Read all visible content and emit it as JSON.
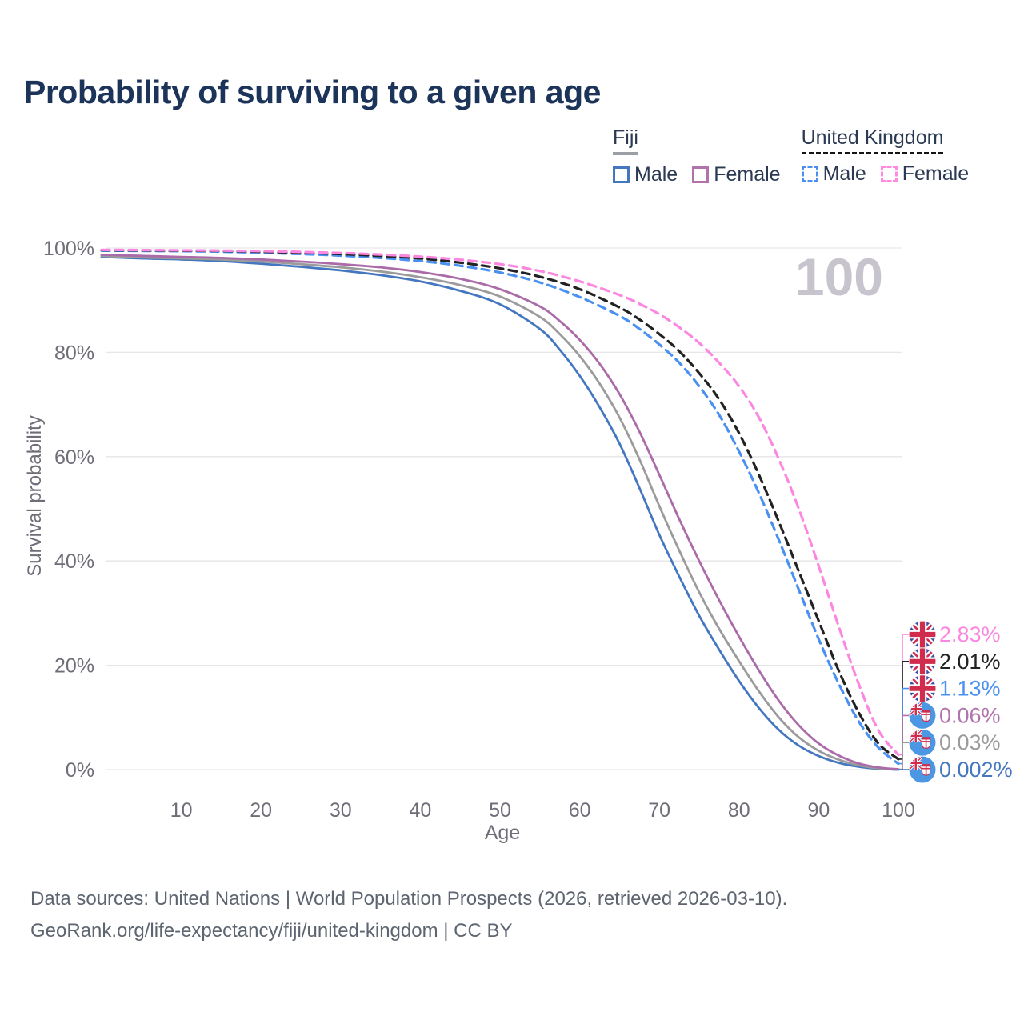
{
  "title": "Probability of surviving to a given age",
  "watermark_age": "100",
  "legend": {
    "groups": [
      {
        "country": "Fiji",
        "underline_style": "solid",
        "underline_color": "#9aa0a6",
        "items": [
          {
            "label": "Male",
            "color": "#4577c0",
            "dash": false
          },
          {
            "label": "Female",
            "color": "#b273ac",
            "dash": false
          }
        ]
      },
      {
        "country": "United Kingdom",
        "underline_style": "dashed",
        "underline_color": "#141414",
        "items": [
          {
            "label": "Male",
            "color": "#4a90f0",
            "dash": true
          },
          {
            "label": "Female",
            "color": "#ff8ae0",
            "dash": true
          }
        ]
      }
    ]
  },
  "chart_data": {
    "type": "line",
    "title": "Probability of surviving to a given age",
    "xlabel": "Age",
    "ylabel": "Survival probability",
    "xlim": [
      0,
      100
    ],
    "ylim": [
      0,
      100
    ],
    "grid": "horizontal",
    "legend_position": "top-right",
    "xticks": [
      10,
      20,
      30,
      40,
      50,
      60,
      70,
      80,
      90,
      100
    ],
    "yticks": [
      {
        "value": 0,
        "label": "0%"
      },
      {
        "value": 20,
        "label": "20%"
      },
      {
        "value": 40,
        "label": "40%"
      },
      {
        "value": 60,
        "label": "60%"
      },
      {
        "value": 80,
        "label": "80%"
      },
      {
        "value": 100,
        "label": "100%"
      }
    ],
    "series": [
      {
        "id": "fiji-male",
        "name": "Fiji Male",
        "country": "Fiji",
        "sex": "Male",
        "color": "#4577c0",
        "dash": false,
        "flag_icon": "fiji-flag-icon",
        "end_label": "0.002%",
        "end_label_color": "#4577c0",
        "points": [
          [
            0,
            98.3
          ],
          [
            5,
            98.0
          ],
          [
            10,
            97.8
          ],
          [
            15,
            97.5
          ],
          [
            20,
            97.0
          ],
          [
            25,
            96.4
          ],
          [
            30,
            95.7
          ],
          [
            35,
            94.8
          ],
          [
            40,
            93.6
          ],
          [
            45,
            91.8
          ],
          [
            50,
            89.2
          ],
          [
            55,
            84.5
          ],
          [
            57.5,
            80.5
          ],
          [
            60,
            75.5
          ],
          [
            62.5,
            69.5
          ],
          [
            65,
            62.5
          ],
          [
            67.5,
            54
          ],
          [
            70,
            45
          ],
          [
            72.5,
            37
          ],
          [
            75,
            29.5
          ],
          [
            77.5,
            23
          ],
          [
            80,
            17
          ],
          [
            82.5,
            11.8
          ],
          [
            85,
            7.6
          ],
          [
            87.5,
            4.6
          ],
          [
            90,
            2.6
          ],
          [
            92.5,
            1.3
          ],
          [
            95,
            0.55
          ],
          [
            97.5,
            0.15
          ],
          [
            100,
            0.002
          ]
        ]
      },
      {
        "id": "fiji-total",
        "name": "Fiji Both sexes",
        "country": "Fiji",
        "sex": "Both",
        "color": "#9b9b9b",
        "dash": false,
        "flag_icon": "fiji-flag-icon",
        "end_label": "0.03%",
        "end_label_color": "#9b9b9b",
        "points": [
          [
            0,
            98.5
          ],
          [
            5,
            98.2
          ],
          [
            10,
            98.0
          ],
          [
            15,
            97.8
          ],
          [
            20,
            97.4
          ],
          [
            25,
            96.9
          ],
          [
            30,
            96.3
          ],
          [
            35,
            95.5
          ],
          [
            40,
            94.4
          ],
          [
            45,
            92.9
          ],
          [
            50,
            90.7
          ],
          [
            55,
            86.8
          ],
          [
            57.5,
            83.5
          ],
          [
            60,
            79.3
          ],
          [
            62.5,
            74
          ],
          [
            65,
            67.5
          ],
          [
            67.5,
            59.5
          ],
          [
            70,
            50.5
          ],
          [
            72.5,
            42
          ],
          [
            75,
            34
          ],
          [
            77.5,
            27
          ],
          [
            80,
            20.8
          ],
          [
            82.5,
            15
          ],
          [
            85,
            10
          ],
          [
            87.5,
            6.2
          ],
          [
            90,
            3.6
          ],
          [
            92.5,
            1.9
          ],
          [
            95,
            0.85
          ],
          [
            97.5,
            0.25
          ],
          [
            100,
            0.03
          ]
        ]
      },
      {
        "id": "fiji-female",
        "name": "Fiji Female",
        "country": "Fiji",
        "sex": "Female",
        "color": "#ab6aa8",
        "dash": false,
        "flag_icon": "fiji-flag-icon",
        "end_label": "0.06%",
        "end_label_color": "#b273ac",
        "points": [
          [
            0,
            98.7
          ],
          [
            5,
            98.5
          ],
          [
            10,
            98.3
          ],
          [
            15,
            98.1
          ],
          [
            20,
            97.8
          ],
          [
            25,
            97.4
          ],
          [
            30,
            96.9
          ],
          [
            35,
            96.3
          ],
          [
            40,
            95.4
          ],
          [
            45,
            94.1
          ],
          [
            50,
            92.1
          ],
          [
            55,
            88.8
          ],
          [
            57.5,
            86
          ],
          [
            60,
            82.4
          ],
          [
            62.5,
            77.8
          ],
          [
            65,
            72
          ],
          [
            67.5,
            64.8
          ],
          [
            70,
            56.5
          ],
          [
            72.5,
            48
          ],
          [
            75,
            40
          ],
          [
            77.5,
            32.5
          ],
          [
            80,
            25.5
          ],
          [
            82.5,
            19
          ],
          [
            85,
            13.2
          ],
          [
            87.5,
            8.5
          ],
          [
            90,
            5
          ],
          [
            92.5,
            2.7
          ],
          [
            95,
            1.2
          ],
          [
            97.5,
            0.4
          ],
          [
            100,
            0.06
          ]
        ]
      },
      {
        "id": "uk-male",
        "name": "United Kingdom Male",
        "country": "United Kingdom",
        "sex": "Male",
        "color": "#4a90f0",
        "dash": true,
        "flag_icon": "uk-flag-icon",
        "end_label": "1.13%",
        "end_label_color": "#4a90f0",
        "points": [
          [
            0,
            99.5
          ],
          [
            5,
            99.45
          ],
          [
            10,
            99.4
          ],
          [
            15,
            99.3
          ],
          [
            20,
            99.1
          ],
          [
            25,
            98.85
          ],
          [
            30,
            98.55
          ],
          [
            35,
            98.1
          ],
          [
            40,
            97.5
          ],
          [
            45,
            96.6
          ],
          [
            50,
            95.3
          ],
          [
            55,
            93.4
          ],
          [
            60,
            90.6
          ],
          [
            65,
            87
          ],
          [
            67.5,
            84.5
          ],
          [
            70,
            81.5
          ],
          [
            72.5,
            78
          ],
          [
            75,
            73.5
          ],
          [
            77.5,
            68
          ],
          [
            80,
            61
          ],
          [
            82.5,
            53
          ],
          [
            85,
            44
          ],
          [
            87.5,
            34.5
          ],
          [
            90,
            25
          ],
          [
            92.5,
            16.5
          ],
          [
            95,
            9.3
          ],
          [
            97.5,
            4.2
          ],
          [
            100,
            1.13
          ]
        ]
      },
      {
        "id": "uk-total",
        "name": "United Kingdom Both sexes",
        "country": "United Kingdom",
        "sex": "Both",
        "color": "#222222",
        "dash": true,
        "flag_icon": "uk-flag-icon",
        "end_label": "2.01%",
        "end_label_color": "#222222",
        "points": [
          [
            0,
            99.6
          ],
          [
            5,
            99.55
          ],
          [
            10,
            99.5
          ],
          [
            15,
            99.45
          ],
          [
            20,
            99.3
          ],
          [
            25,
            99.1
          ],
          [
            30,
            98.85
          ],
          [
            35,
            98.5
          ],
          [
            40,
            98.0
          ],
          [
            45,
            97.2
          ],
          [
            50,
            96.1
          ],
          [
            55,
            94.5
          ],
          [
            60,
            92.1
          ],
          [
            65,
            88.6
          ],
          [
            67.5,
            86.3
          ],
          [
            70,
            83.5
          ],
          [
            72.5,
            80.2
          ],
          [
            75,
            76
          ],
          [
            77.5,
            71
          ],
          [
            80,
            64.5
          ],
          [
            82.5,
            56.5
          ],
          [
            85,
            47.5
          ],
          [
            87.5,
            38
          ],
          [
            90,
            28.5
          ],
          [
            92.5,
            19
          ],
          [
            95,
            11
          ],
          [
            97.5,
            5
          ],
          [
            100,
            2.01
          ]
        ]
      },
      {
        "id": "uk-female",
        "name": "United Kingdom Female",
        "country": "United Kingdom",
        "sex": "Female",
        "color": "#fb87e0",
        "dash": true,
        "flag_icon": "uk-flag-icon",
        "end_label": "2.83%",
        "end_label_color": "#fb87e0",
        "points": [
          [
            0,
            99.65
          ],
          [
            5,
            99.6
          ],
          [
            10,
            99.55
          ],
          [
            15,
            99.5
          ],
          [
            20,
            99.4
          ],
          [
            25,
            99.25
          ],
          [
            30,
            99.05
          ],
          [
            35,
            98.75
          ],
          [
            40,
            98.35
          ],
          [
            45,
            97.75
          ],
          [
            50,
            96.9
          ],
          [
            55,
            95.6
          ],
          [
            60,
            93.6
          ],
          [
            65,
            91
          ],
          [
            67.5,
            89.3
          ],
          [
            70,
            87.3
          ],
          [
            72.5,
            84.8
          ],
          [
            75,
            81.8
          ],
          [
            77.5,
            78
          ],
          [
            80,
            73.5
          ],
          [
            82.5,
            67.5
          ],
          [
            85,
            59.5
          ],
          [
            87.5,
            50
          ],
          [
            90,
            39
          ],
          [
            92.5,
            27.5
          ],
          [
            95,
            16.5
          ],
          [
            97.5,
            7.5
          ],
          [
            100,
            2.83
          ]
        ]
      }
    ]
  },
  "colors": {
    "title": "#1c3459",
    "axis_text": "#6e6e78",
    "gridline": "#e6e6e9",
    "watermark": "#c7c4cd",
    "footer_text": "#5d6570"
  },
  "footer": {
    "line1": "Data sources: United Nations | World Population Prospects (2026, retrieved 2026-03-10).",
    "line2": "GeoRank.org/life-expectancy/fiji/united-kingdom | CC BY"
  }
}
